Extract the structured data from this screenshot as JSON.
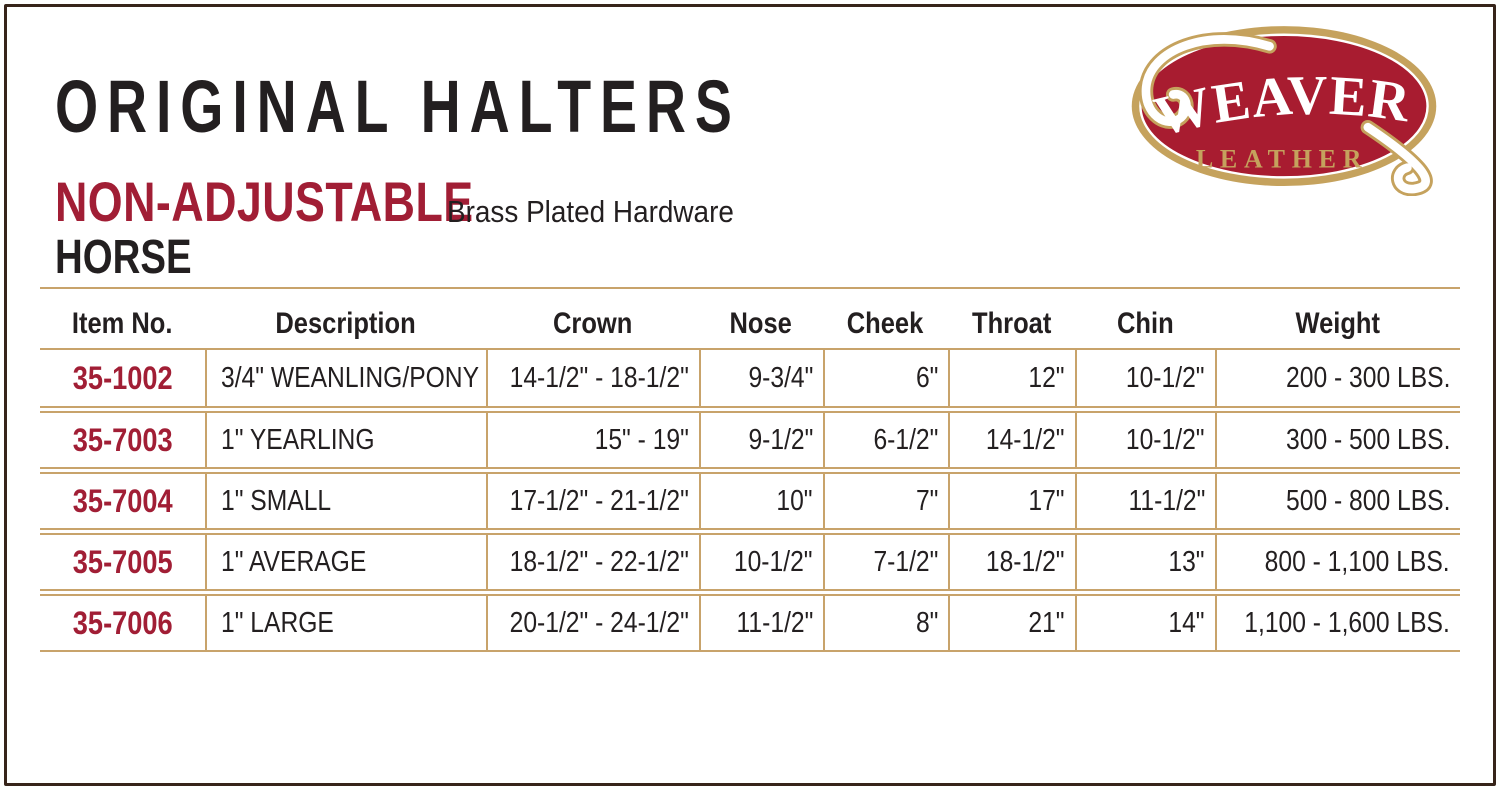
{
  "document": {
    "title": "ORIGINAL HALTERS",
    "category": "NON-ADJUSTABLE",
    "hardware_note": "Brass Plated Hardware",
    "section": "HORSE"
  },
  "logo": {
    "brand": "WEAVER",
    "brand_sub": "LEATHER"
  },
  "colors": {
    "accent_red": "#a11e35",
    "table_line_tan": "#c8a36b",
    "logo_red": "#a81c30",
    "logo_gold": "#c5a25d",
    "frame_brown": "#37241a",
    "text_black": "#231f20"
  },
  "table": {
    "columns": [
      "Item No.",
      "Description",
      "Crown",
      "Nose",
      "Cheek",
      "Throat",
      "Chin",
      "Weight"
    ],
    "rows": [
      {
        "item_no": "35-1002",
        "description": "3/4\" WEANLING/PONY",
        "crown": "14-1/2\" - 18-1/2\"",
        "nose": "9-3/4\"",
        "cheek": "6\"",
        "throat": "12\"",
        "chin": "10-1/2\"",
        "weight": "200 - 300 LBS."
      },
      {
        "item_no": "35-7003",
        "description": "1\" YEARLING",
        "crown": "15\" - 19\"",
        "nose": "9-1/2\"",
        "cheek": "6-1/2\"",
        "throat": "14-1/2\"",
        "chin": "10-1/2\"",
        "weight": "300 - 500 LBS."
      },
      {
        "item_no": "35-7004",
        "description": "1\" SMALL",
        "crown": "17-1/2\" - 21-1/2\"",
        "nose": "10\"",
        "cheek": "7\"",
        "throat": "17\"",
        "chin": "11-1/2\"",
        "weight": "500 - 800 LBS."
      },
      {
        "item_no": "35-7005",
        "description": "1\" AVERAGE",
        "crown": "18-1/2\" - 22-1/2\"",
        "nose": "10-1/2\"",
        "cheek": "7-1/2\"",
        "throat": "18-1/2\"",
        "chin": "13\"",
        "weight": "800 - 1,100 LBS."
      },
      {
        "item_no": "35-7006",
        "description": "1\" LARGE",
        "crown": "20-1/2\" - 24-1/2\"",
        "nose": "11-1/2\"",
        "cheek": "8\"",
        "throat": "21\"",
        "chin": "14\"",
        "weight": "1,100 - 1,600 LBS."
      }
    ]
  }
}
